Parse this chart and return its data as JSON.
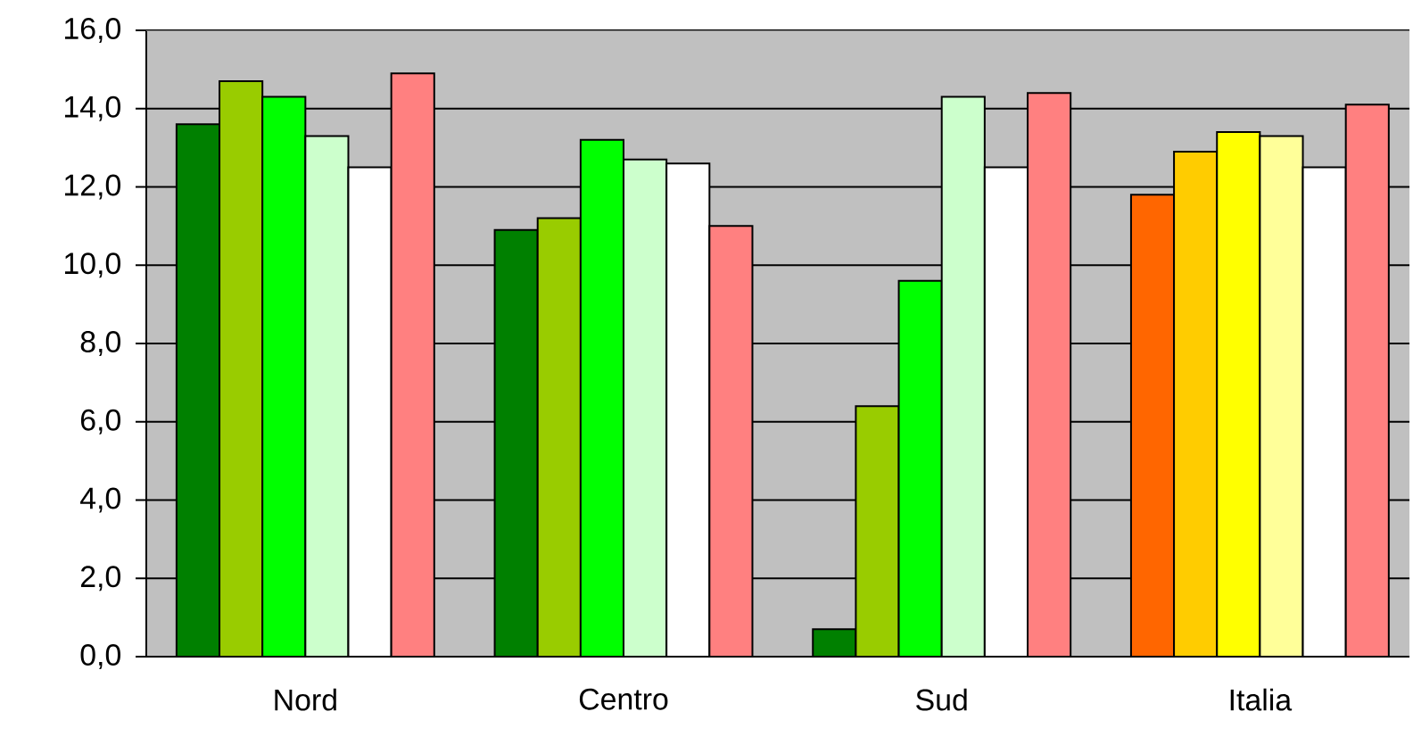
{
  "chart_data": {
    "type": "bar",
    "categories": [
      "Nord",
      "Centro",
      "Sud",
      "Italia"
    ],
    "series": [
      {
        "colors": [
          "#008000",
          "#008000",
          "#008000",
          "#ff6600"
        ],
        "values": [
          13.6,
          10.9,
          0.7,
          11.8
        ]
      },
      {
        "colors": [
          "#99cc00",
          "#99cc00",
          "#99cc00",
          "#ffcc00"
        ],
        "values": [
          14.7,
          11.2,
          6.4,
          12.9
        ]
      },
      {
        "colors": [
          "#00ff00",
          "#00ff00",
          "#00ff00",
          "#ffff00"
        ],
        "values": [
          14.3,
          13.2,
          9.6,
          13.4
        ]
      },
      {
        "colors": [
          "#ccffcc",
          "#ccffcc",
          "#ccffcc",
          "#ffff99"
        ],
        "values": [
          13.3,
          12.7,
          14.3,
          13.3
        ]
      },
      {
        "color": "#ffffff",
        "values": [
          12.5,
          12.6,
          12.5,
          12.5
        ]
      },
      {
        "color": "#ff8080",
        "values": [
          14.9,
          11.0,
          14.4,
          14.1
        ]
      }
    ],
    "ylim": [
      0,
      16
    ],
    "yticks": [
      {
        "value": 0,
        "label": "0,0"
      },
      {
        "value": 2,
        "label": "2,0"
      },
      {
        "value": 4,
        "label": "4,0"
      },
      {
        "value": 6,
        "label": "6,0"
      },
      {
        "value": 8,
        "label": "8,0"
      },
      {
        "value": 10,
        "label": "10,0"
      },
      {
        "value": 12,
        "label": "12,0"
      },
      {
        "value": 14,
        "label": "14,0"
      },
      {
        "value": 16,
        "label": "16,0"
      }
    ],
    "grid": "y"
  }
}
